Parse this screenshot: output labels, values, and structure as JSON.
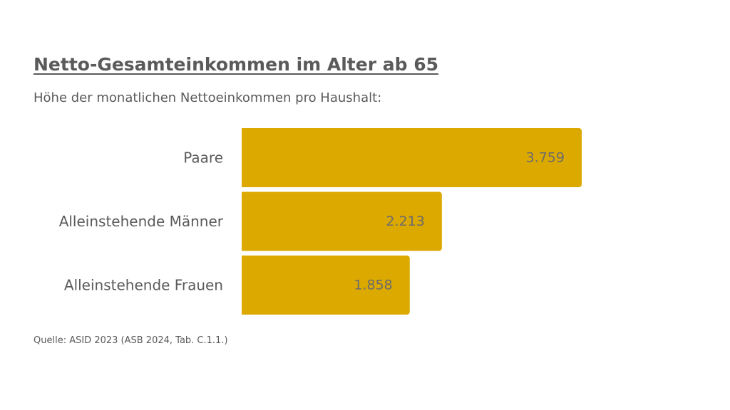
{
  "header": {
    "title": "Netto-Gesamteinkommen im Alter ab 65",
    "subtitle": "Höhe der monatlichen Nettoeinkommen pro Haushalt:"
  },
  "footer": {
    "source": "Quelle: ASID 2023 (ASB 2024, Tab. C.1.1.)"
  },
  "colors": {
    "bar": "#DBA900",
    "text": "#5a5a5a"
  },
  "chart_data": {
    "type": "bar",
    "orientation": "horizontal",
    "categories": [
      "Paare",
      "Alleinstehende Männer",
      "Alleinstehende Frauen"
    ],
    "values": [
      3759,
      2213,
      1858
    ],
    "value_labels": [
      "3.759",
      "2.213",
      "1.858"
    ],
    "title": "Netto-Gesamteinkommen im Alter ab 65",
    "xlabel": "",
    "ylabel": "",
    "xlim": [
      0,
      3759
    ],
    "grid": false,
    "legend": "none"
  }
}
